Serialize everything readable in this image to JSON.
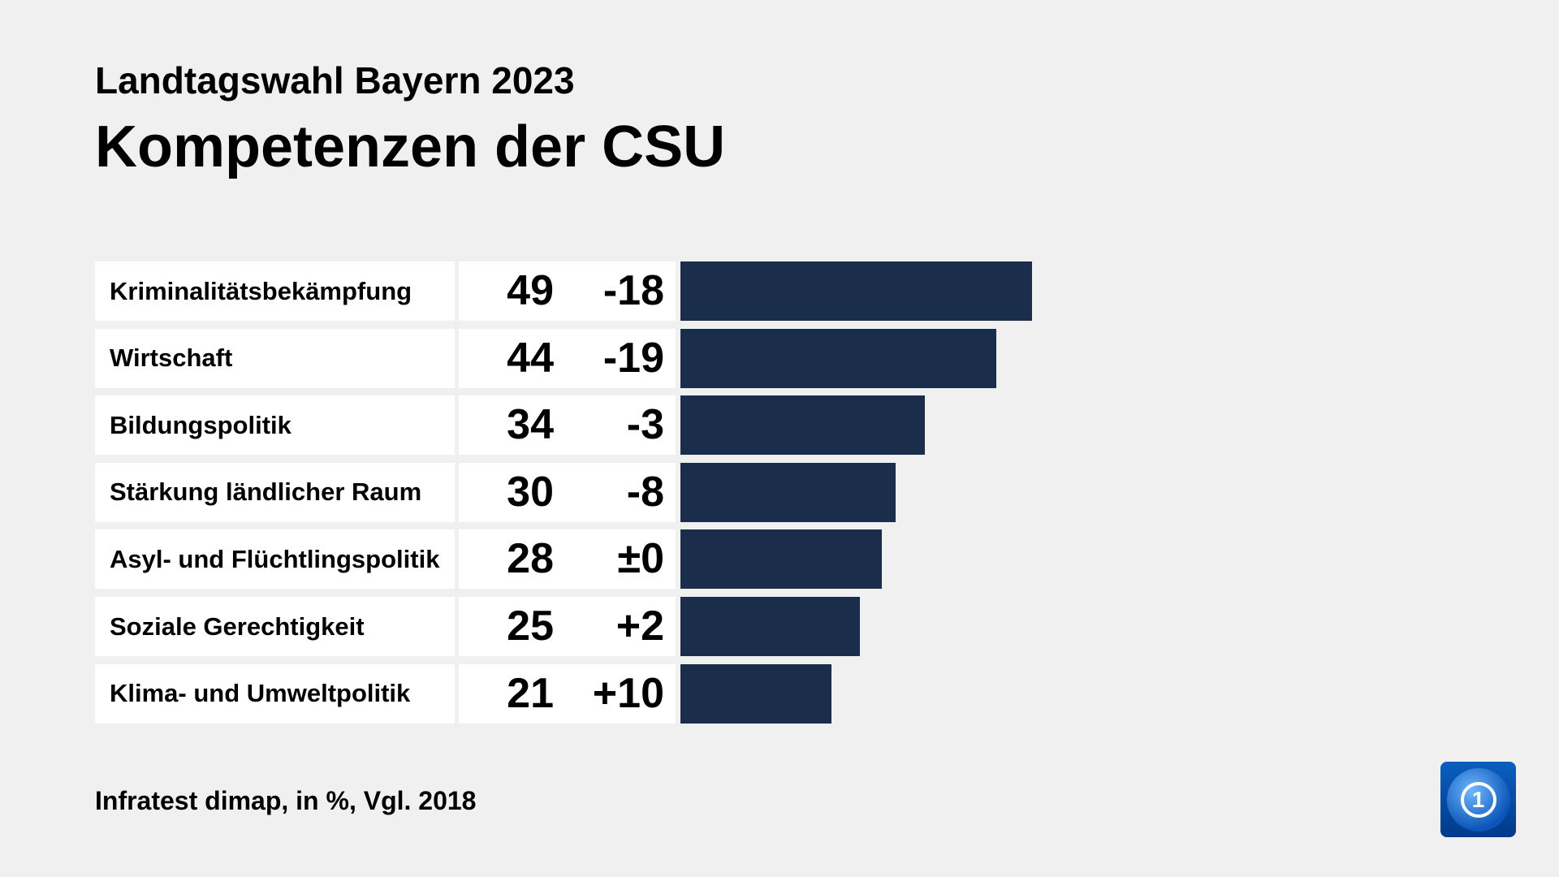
{
  "header": {
    "subtitle": "Landtagswahl Bayern 2023",
    "title": "Kompetenzen der CSU"
  },
  "footer": {
    "source": "Infratest dimap, in %, Vgl. 2018"
  },
  "logo": {
    "text": "1",
    "icon": "tagesschau-globe-logo"
  },
  "colors": {
    "bar": "#1a2d4b",
    "background": "#f0f0f0"
  },
  "chart_data": {
    "type": "bar",
    "orientation": "horizontal",
    "categories": [
      "Kriminalitätsbekämpfung",
      "Wirtschaft",
      "Bildungspolitik",
      "Stärkung ländlicher Raum",
      "Asyl- und Flüchtlingspolitik",
      "Soziale Gerechtigkeit",
      "Klima- und Umweltpolitik"
    ],
    "values": [
      49,
      44,
      34,
      30,
      28,
      25,
      21
    ],
    "value_labels": [
      "49",
      "44",
      "34",
      "30",
      "28",
      "25",
      "21"
    ],
    "changes": [
      "-18",
      "-19",
      "-3",
      "-8",
      "±0",
      "+2",
      "+10"
    ],
    "title": "Kompetenzen der CSU",
    "subtitle": "Landtagswahl Bayern 2023",
    "xlim": [
      0,
      49
    ],
    "grid": false
  }
}
